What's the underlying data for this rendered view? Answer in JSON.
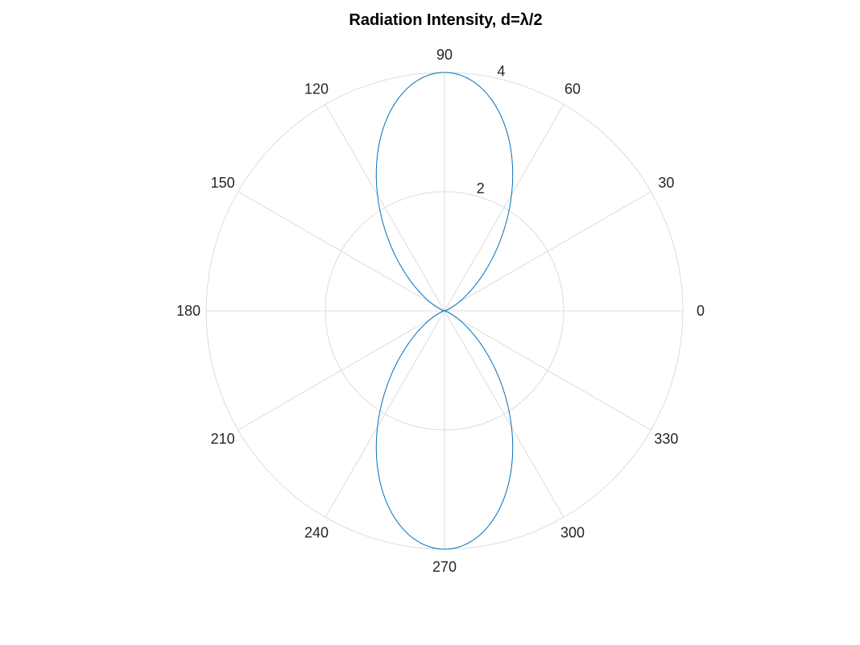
{
  "chart_data": {
    "type": "polar-line",
    "title": "Radiation Intensity, d=λ/2",
    "theta_ticks": [
      "0",
      "30",
      "60",
      "90",
      "120",
      "150",
      "180",
      "210",
      "240",
      "270",
      "300",
      "330"
    ],
    "r_ticks": [
      "2",
      "4"
    ],
    "rlim": [
      0,
      4
    ],
    "grid": true,
    "series": [
      {
        "color": "#0072bd",
        "max_intensity": 4,
        "theta_deg": [
          0,
          10,
          20,
          30,
          40,
          50,
          60,
          70,
          80,
          90,
          100,
          110,
          120,
          130,
          140,
          150,
          160,
          170,
          180,
          190,
          200,
          210,
          220,
          230,
          240,
          250,
          260,
          270,
          280,
          290,
          300,
          310,
          320,
          330,
          340,
          350,
          360
        ],
        "r": [
          0.0,
          0.0031,
          0.049,
          0.236,
          0.685,
          1.399,
          2.224,
          2.983,
          3.665,
          4.0,
          3.665,
          2.983,
          2.224,
          1.399,
          0.685,
          0.236,
          0.049,
          0.0031,
          0.0,
          0.0031,
          0.049,
          0.236,
          0.685,
          1.399,
          2.224,
          2.983,
          3.665,
          4.0,
          3.665,
          2.983,
          2.224,
          1.399,
          0.685,
          0.236,
          0.049,
          0.0031,
          0.0
        ]
      }
    ]
  }
}
